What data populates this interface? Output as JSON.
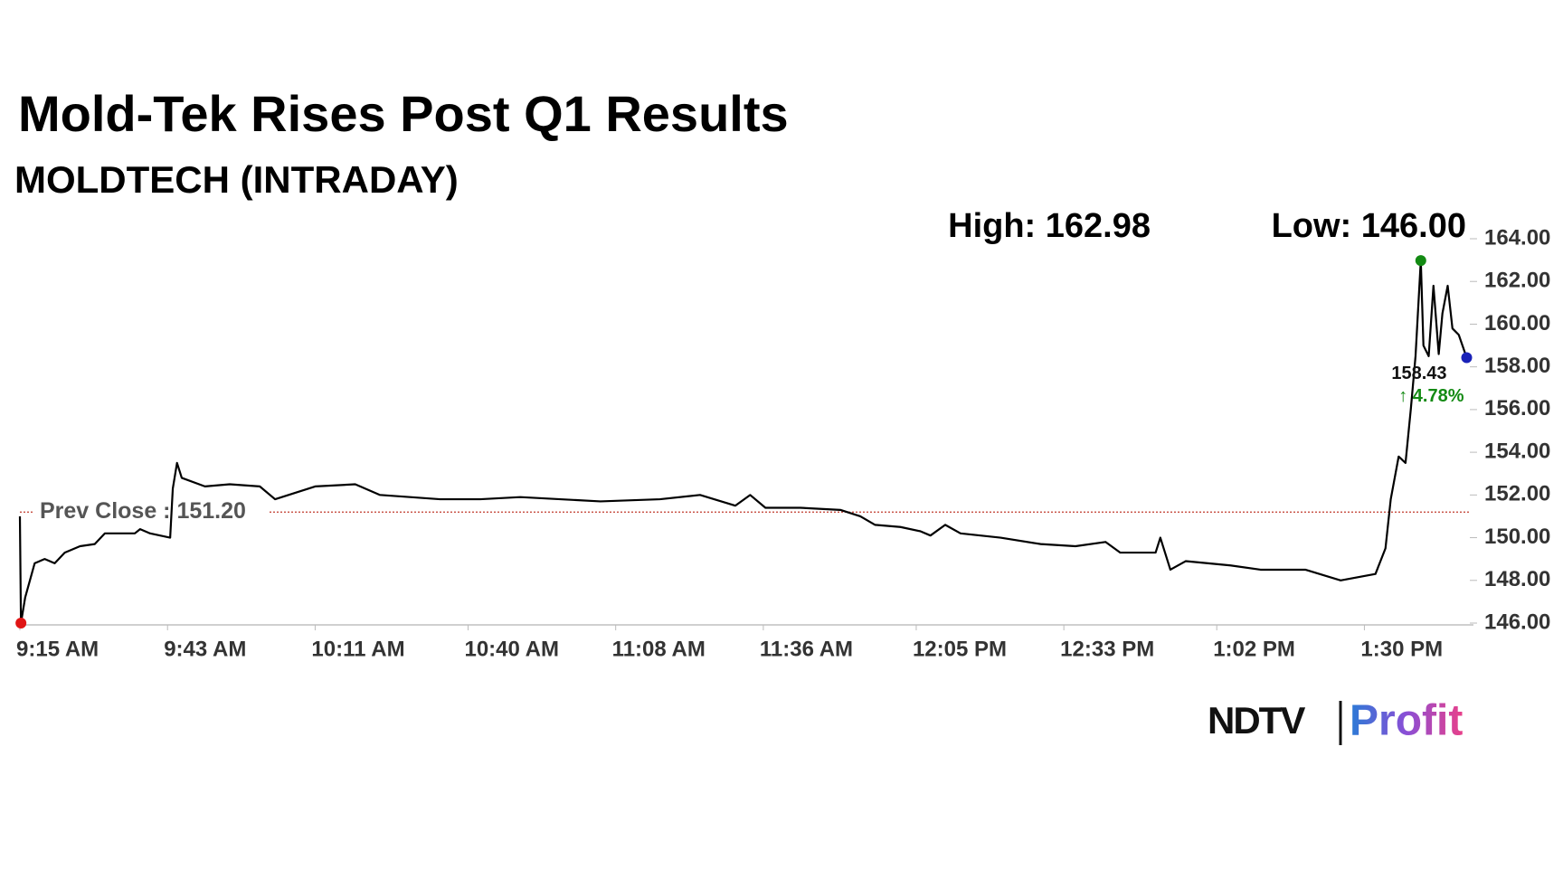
{
  "chart_data": {
    "type": "line",
    "title": "Mold-Tek Rises Post Q1 Results",
    "subtitle": "MOLDTECH (INTRADAY)",
    "high_label": "High: 162.98",
    "low_label": "Low: 146.00",
    "prev_close": {
      "value": 151.2,
      "label": "Prev Close : 151.20"
    },
    "last_label": "158.43",
    "change_label": "↑ 4.78%",
    "xlim": [
      555,
      830
    ],
    "xticks": [
      {
        "value": 555,
        "label": "9:15 AM"
      },
      {
        "value": 583,
        "label": "9:43 AM"
      },
      {
        "value": 611,
        "label": "10:11 AM"
      },
      {
        "value": 640,
        "label": "10:40 AM"
      },
      {
        "value": 668,
        "label": "11:08 AM"
      },
      {
        "value": 696,
        "label": "11:36 AM"
      },
      {
        "value": 725,
        "label": "12:05 PM"
      },
      {
        "value": 753,
        "label": "12:33 PM"
      },
      {
        "value": 782,
        "label": "1:02 PM"
      },
      {
        "value": 810,
        "label": "1:30 PM"
      }
    ],
    "ylim": [
      146,
      164
    ],
    "yticks": [
      {
        "value": 146,
        "label": "146.00"
      },
      {
        "value": 148,
        "label": "148.00"
      },
      {
        "value": 150,
        "label": "150.00"
      },
      {
        "value": 152,
        "label": "152.00"
      },
      {
        "value": 154,
        "label": "154.00"
      },
      {
        "value": 156,
        "label": "156.00"
      },
      {
        "value": 158,
        "label": "158.00"
      },
      {
        "value": 160,
        "label": "160.00"
      },
      {
        "value": 162,
        "label": "162.00"
      },
      {
        "value": 164,
        "label": "164.00"
      }
    ],
    "x": [
      555,
      555.2,
      556,
      557.8,
      559.7,
      561.6,
      563.5,
      566.4,
      569.2,
      571.1,
      576.8,
      577.8,
      579.7,
      583.5,
      584,
      584.8,
      585.7,
      590.1,
      594.8,
      600.5,
      603.4,
      611,
      618.6,
      623.3,
      629,
      634.7,
      642.3,
      649.9,
      657.5,
      665.1,
      676.4,
      684,
      690.7,
      693.5,
      696.4,
      703,
      710.6,
      714.4,
      717.2,
      722,
      725.8,
      727.7,
      730.5,
      733.4,
      741,
      748.6,
      755.2,
      760.9,
      763.7,
      770.4,
      771.3,
      773.2,
      776.1,
      784.6,
      790.3,
      798.8,
      805.5,
      812.1,
      814,
      815,
      816.5,
      817.8,
      818.8,
      819.7,
      820.7,
      821.2,
      822.2,
      823.1,
      824.1,
      824.8,
      825.8,
      826.7,
      827.9,
      829.4
    ],
    "series": [
      {
        "color": "#000000",
        "values": [
          151.0,
          146.0,
          147.2,
          148.8,
          149.0,
          148.8,
          149.3,
          149.6,
          149.7,
          150.2,
          150.2,
          150.4,
          150.2,
          150.0,
          152.3,
          153.5,
          152.8,
          152.4,
          152.5,
          152.4,
          151.8,
          152.4,
          152.5,
          152.0,
          151.9,
          151.8,
          151.8,
          151.9,
          151.8,
          151.7,
          151.8,
          152.0,
          151.5,
          152.0,
          151.4,
          151.4,
          151.3,
          151.0,
          150.6,
          150.5,
          150.3,
          150.1,
          150.6,
          150.2,
          150.0,
          149.7,
          149.6,
          149.8,
          149.3,
          149.3,
          150.0,
          148.5,
          148.9,
          148.7,
          148.5,
          148.5,
          148.0,
          148.3,
          149.5,
          151.8,
          153.8,
          153.5,
          156.0,
          158.5,
          162.98,
          159.0,
          158.5,
          161.8,
          158.6,
          160.5,
          161.8,
          159.8,
          159.5,
          158.43
        ]
      }
    ],
    "high_color": "#138a13",
    "low_color": "#e01515",
    "last_color": "#1a22b8",
    "prev_close_color": "#c0392b",
    "change_color": "#138a13"
  },
  "brand": {
    "name": "NDTV",
    "product": "Profit"
  }
}
